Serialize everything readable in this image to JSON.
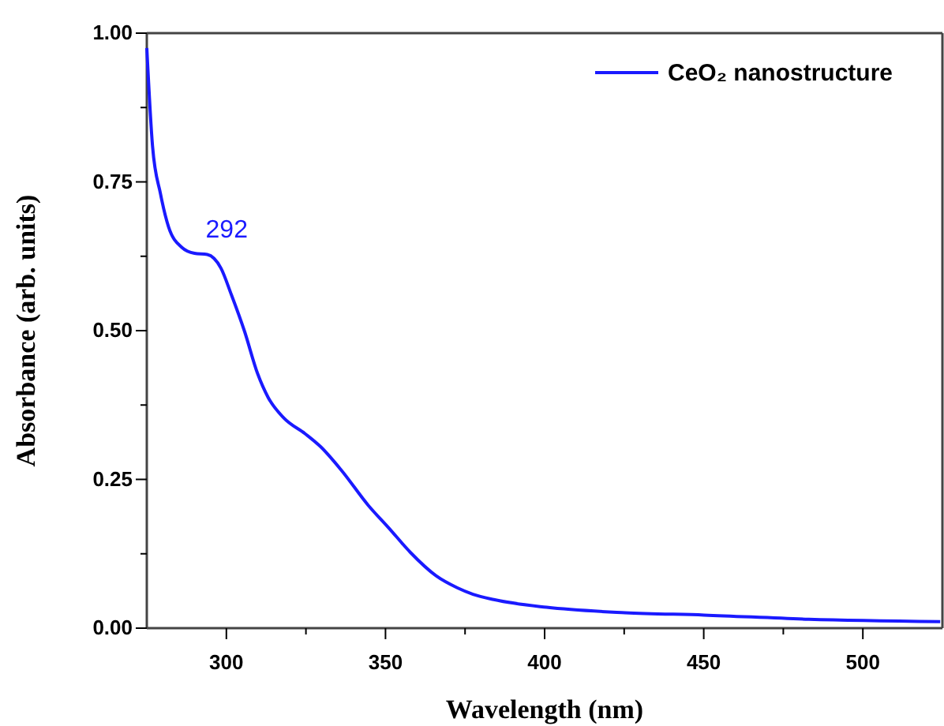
{
  "chart_data": {
    "type": "line",
    "xlabel": "Wavelength (nm)",
    "ylabel": "Absorbance (arb. units)",
    "xlim": [
      275,
      525
    ],
    "ylim": [
      0,
      1
    ],
    "xticks": [
      300,
      {
        "value": 325,
        "label": null
      },
      350,
      {
        "value": 375,
        "label": null
      },
      400,
      {
        "value": 425,
        "label": null
      },
      450,
      {
        "value": 475,
        "label": null
      },
      500
    ],
    "yticks": [
      {
        "value": 0,
        "label": "0.00"
      },
      {
        "value": 0.125,
        "label": null
      },
      {
        "value": 0.25,
        "label": "0.25"
      },
      {
        "value": 0.375,
        "label": null
      },
      {
        "value": 0.5,
        "label": "0.50"
      },
      {
        "value": 0.625,
        "label": null
      },
      {
        "value": 0.75,
        "label": "0.75"
      },
      {
        "value": 0.875,
        "label": null
      },
      {
        "value": 1,
        "label": "1.00"
      }
    ],
    "x": [
      275,
      276.8,
      279.3,
      281.8,
      286,
      290,
      294,
      298.3,
      301.6,
      305.7,
      309.8,
      313.1,
      318.1,
      324.7,
      329.6,
      336.2,
      344.5,
      351.1,
      357.7,
      365.9,
      372.5,
      377.5,
      384,
      400.6,
      425.3,
      450.1,
      483,
      524.3
    ],
    "series": [
      {
        "name": "CeO₂ nanostructure",
        "color": "#1a1aff",
        "values": [
          0.975,
          0.81,
          0.73,
          0.675,
          0.64,
          0.63,
          0.628,
          0.605,
          0.56,
          0.499,
          0.428,
          0.388,
          0.353,
          0.327,
          0.305,
          0.265,
          0.207,
          0.168,
          0.128,
          0.088,
          0.068,
          0.057,
          0.048,
          0.035,
          0.026,
          0.022,
          0.015,
          0.011
        ]
      }
    ],
    "annotations": [
      {
        "text": "292",
        "x": 292,
        "y": 0.63
      }
    ],
    "legend": "top right",
    "grid": false,
    "marker": "none",
    "line_style": "solid"
  }
}
